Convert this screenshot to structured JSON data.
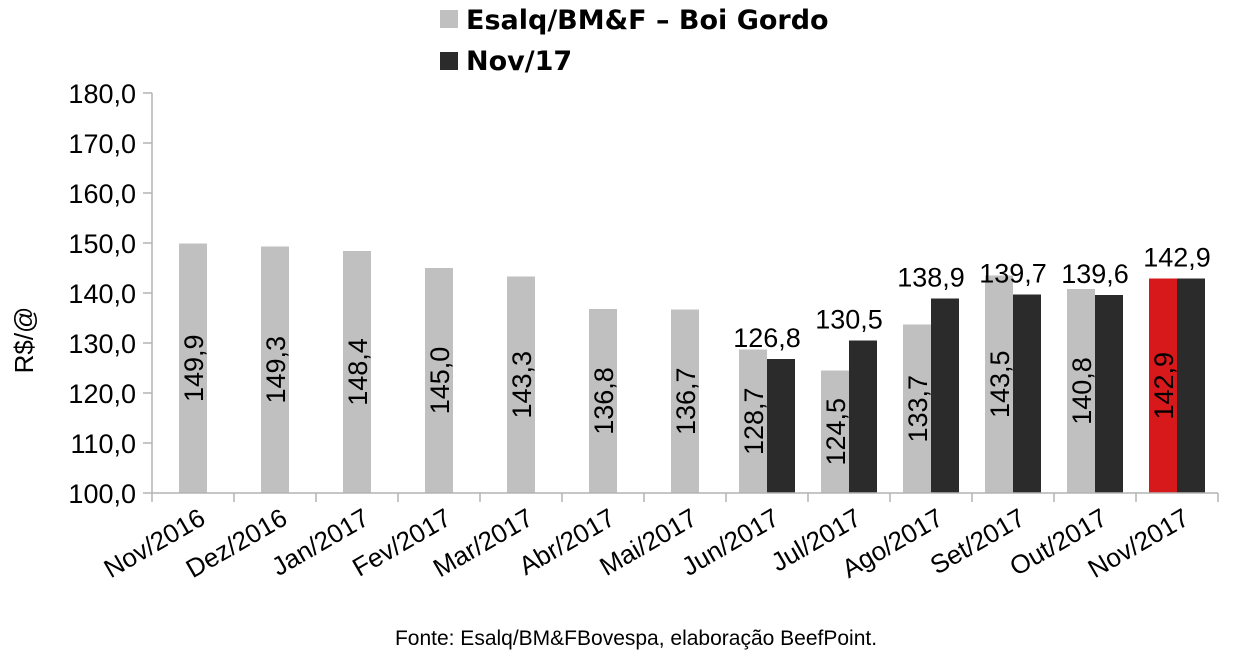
{
  "chart_data": {
    "type": "bar",
    "categories": [
      "Nov/2016",
      "Dez/2016",
      "Jan/2017",
      "Fev/2017",
      "Mar/2017",
      "Abr/2017",
      "Mai/2017",
      "Jun/2017",
      "Jul/2017",
      "Ago/2017",
      "Set/2017",
      "Out/2017",
      "Nov/2017"
    ],
    "series": [
      {
        "name": "Esalq/BM&F – Boi Gordo",
        "color": "#c0c0c0",
        "values": [
          149.9,
          149.3,
          148.4,
          145.0,
          143.3,
          136.8,
          136.7,
          128.7,
          124.5,
          133.7,
          143.5,
          140.8,
          142.9
        ],
        "labels": [
          "149,9",
          "149,3",
          "148,4",
          "145,0",
          "143,3",
          "136,8",
          "136,7",
          "128,7",
          "124,5",
          "133,7",
          "143,5",
          "140,8",
          "142,9"
        ],
        "highlight": {
          "category": "Nov/2017",
          "color": "#d7191c"
        }
      },
      {
        "name": "Nov/17",
        "color": "#2b2b2b",
        "values": [
          null,
          null,
          null,
          null,
          null,
          null,
          null,
          126.8,
          130.5,
          138.9,
          139.7,
          139.6,
          142.9
        ],
        "labels": [
          null,
          null,
          null,
          null,
          null,
          null,
          null,
          "126,8",
          "130,5",
          "138,9",
          "139,7",
          "139,6",
          "142,9"
        ]
      }
    ],
    "ylabel": "R$/@",
    "ylim": [
      100,
      180
    ],
    "yticks": [
      {
        "value": 180,
        "label": "180,0"
      },
      {
        "value": 170,
        "label": "170,0"
      },
      {
        "value": 160,
        "label": "160,0"
      },
      {
        "value": 150,
        "label": "150,0"
      },
      {
        "value": 140,
        "label": "140,0"
      },
      {
        "value": 130,
        "label": "130,0"
      },
      {
        "value": 120,
        "label": "120,0"
      },
      {
        "value": 110,
        "label": "110,0"
      },
      {
        "value": 100,
        "label": "100,0"
      }
    ],
    "grid": false,
    "legend_position": "top",
    "source": "Fonte: Esalq/BM&FBovespa, elaboração BeefPoint."
  }
}
